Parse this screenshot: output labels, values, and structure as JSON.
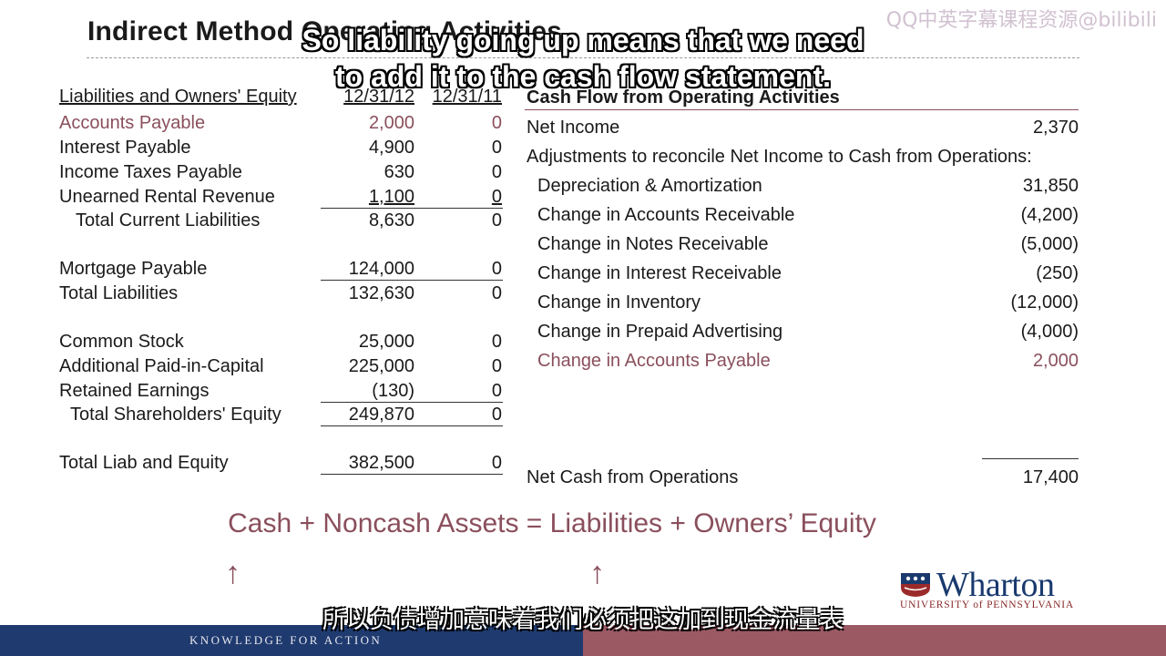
{
  "slide": {
    "title": "Indirect Method Operating Activities",
    "watermark": "QQ中英字幕课程资源@bilibili",
    "subtitle_en_line1": "So liability going up means that we need",
    "subtitle_en_line2": "to add it to the cash flow statement.",
    "subtitle_zh": "所以负债增加意味着我们必须把这加到现金流量表"
  },
  "balance_sheet": {
    "header": {
      "label": "Liabilities and Owners' Equity",
      "col1": "12/31/12",
      "col2": "12/31/11"
    },
    "rows": [
      {
        "label": "Accounts Payable",
        "v1": "2,000",
        "v2": "0"
      },
      {
        "label": "Interest Payable",
        "v1": "4,900",
        "v2": "0"
      },
      {
        "label": "Income Taxes Payable",
        "v1": "630",
        "v2": "0"
      },
      {
        "label": "Unearned Rental Revenue",
        "v1": "1,100",
        "v2": "0"
      },
      {
        "label": "Total Current Liabilities",
        "v1": "8,630",
        "v2": "0"
      },
      {
        "label": "Mortgage Payable",
        "v1": "124,000",
        "v2": "0"
      },
      {
        "label": "Total Liabilities",
        "v1": "132,630",
        "v2": "0"
      },
      {
        "label": "Common Stock",
        "v1": "25,000",
        "v2": "0"
      },
      {
        "label": "Additional Paid-in-Capital",
        "v1": "225,000",
        "v2": "0"
      },
      {
        "label": "Retained Earnings",
        "v1": "(130)",
        "v2": "0"
      },
      {
        "label": "Total Shareholders' Equity",
        "v1": "249,870",
        "v2": "0"
      },
      {
        "label": "Total Liab and Equity",
        "v1": "382,500",
        "v2": "0"
      }
    ]
  },
  "cash_flow": {
    "header": "Cash Flow from Operating Activities",
    "net_income": {
      "label": "Net Income",
      "value": "2,370"
    },
    "adjustments_label": "Adjustments to reconcile Net Income to Cash from Operations:",
    "adjustments": [
      {
        "label": "Depreciation & Amortization",
        "value": "31,850"
      },
      {
        "label": "Change in Accounts Receivable",
        "value": "(4,200)"
      },
      {
        "label": "Change in Notes Receivable",
        "value": "(5,000)"
      },
      {
        "label": "Change in Interest Receivable",
        "value": "(250)"
      },
      {
        "label": "Change in Inventory",
        "value": "(12,000)"
      },
      {
        "label": "Change in Prepaid Advertising",
        "value": "(4,000)"
      },
      {
        "label": "Change in Accounts Payable",
        "value": "2,000"
      }
    ],
    "net_cash": {
      "label": "Net Cash from Operations",
      "value": "17,400"
    }
  },
  "equation": "Cash + Noncash Assets = Liabilities + Owners’ Equity",
  "arrows": {
    "left": "↑",
    "right": "↑"
  },
  "logo": {
    "word": "Wharton",
    "sub": "UNIVERSITY of PENNSYLVANIA"
  },
  "footer": {
    "tagline": "KNOWLEDGE FOR ACTION"
  },
  "colors": {
    "highlight": "#8a4f5c",
    "footer_left": "#1f3a6e",
    "footer_right": "#9b5964"
  }
}
